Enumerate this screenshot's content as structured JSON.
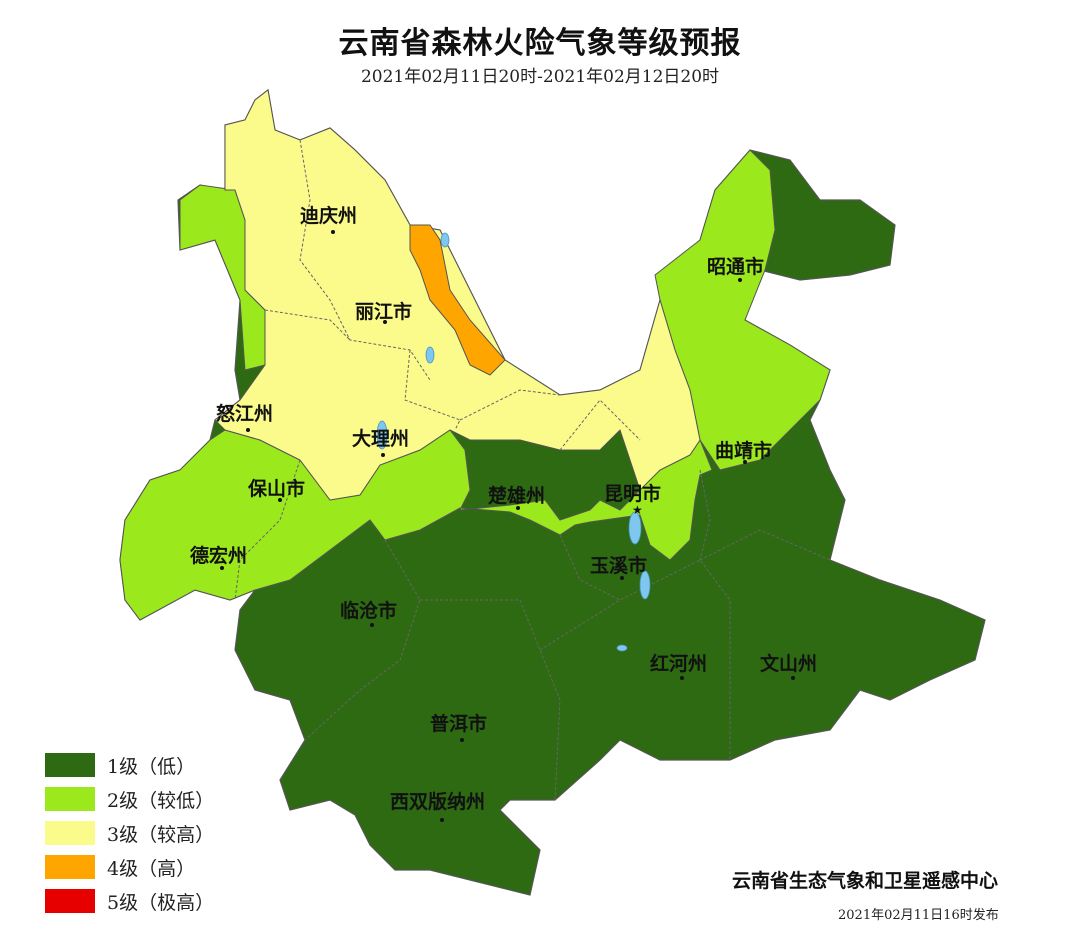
{
  "header": {
    "title": "云南省森林火险气象等级预报",
    "subtitle": "2021年02月11日20时-2021年02月12日20时"
  },
  "colors": {
    "level1": "#2d6a12",
    "level2": "#9be81c",
    "level3": "#fbfb8c",
    "level4": "#ffa500",
    "level5": "#e60000",
    "water": "#7ec8f0",
    "border": "#555555"
  },
  "cities": [
    {
      "name": "迪庆州",
      "level": 3
    },
    {
      "name": "丽江市",
      "level": 3
    },
    {
      "name": "怒江州",
      "level": 3
    },
    {
      "name": "大理州",
      "level": 3
    },
    {
      "name": "保山市",
      "level": 2
    },
    {
      "name": "德宏州",
      "level": 2
    },
    {
      "name": "临沧市",
      "level": 1
    },
    {
      "name": "普洱市",
      "level": 1
    },
    {
      "name": "西双版纳州",
      "level": 1
    },
    {
      "name": "楚雄州",
      "level": 2
    },
    {
      "name": "昆明市",
      "level": 2
    },
    {
      "name": "玉溪市",
      "level": 1
    },
    {
      "name": "红河州",
      "level": 1
    },
    {
      "name": "文山州",
      "level": 1
    },
    {
      "name": "曲靖市",
      "level": 2
    },
    {
      "name": "昭通市",
      "level": 2
    }
  ],
  "legend": [
    {
      "label": "1级（低）",
      "color": "#2d6a12"
    },
    {
      "label": "2级（较低）",
      "color": "#9be81c"
    },
    {
      "label": "3级（较高）",
      "color": "#fbfb8c"
    },
    {
      "label": "4级（高）",
      "color": "#ffa500"
    },
    {
      "label": "5级（极高）",
      "color": "#e60000"
    }
  ],
  "footer": {
    "issuer": "云南省生态气象和卫星遥感中心",
    "issued": "2021年02月11日16时发布"
  }
}
